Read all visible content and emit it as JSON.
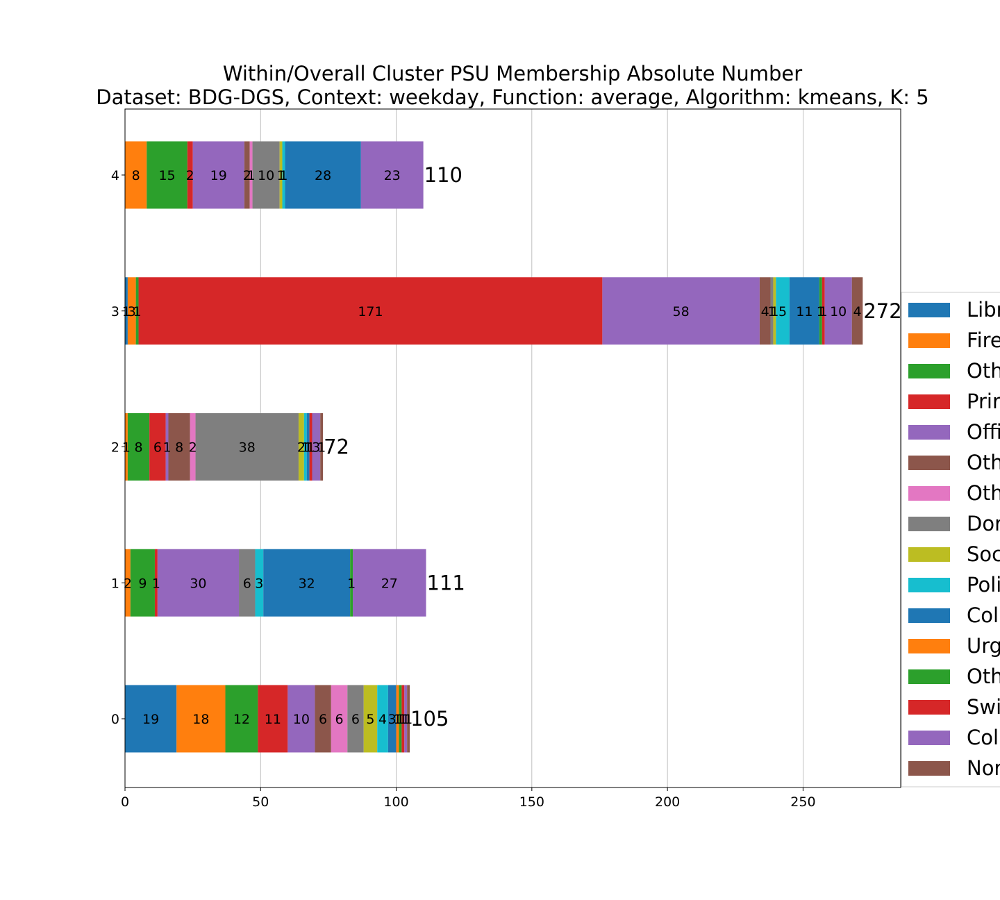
{
  "chart_data": {
    "type": "bar",
    "orientation": "horizontal",
    "stacked": true,
    "title": "Within/Overall Cluster PSU Membership Absolute Number",
    "subtitle": "Dataset: BDG-DGS, Context: weekday, Function: average, Algorithm: kmeans, K: 5",
    "xlabel": "",
    "ylabel": "",
    "xlim": [
      0,
      286
    ],
    "x_ticks": [
      "0",
      "50",
      "100",
      "150",
      "200",
      "250"
    ],
    "grid": "vertical",
    "legend_position": "right (cropped)",
    "categories": [
      "0",
      "1",
      "2",
      "3",
      "4"
    ],
    "totals": [
      "105",
      "111",
      "72",
      "272",
      "110"
    ],
    "series": [
      {
        "name": "Libr",
        "color": "#1f77b4",
        "values": [
          19,
          0,
          0,
          1,
          0
        ],
        "labels": [
          "19",
          "",
          "",
          "1",
          ""
        ]
      },
      {
        "name": "Fire",
        "color": "#ff7f0e",
        "values": [
          18,
          2,
          1,
          3,
          8
        ],
        "labels": [
          "18",
          "2",
          "1",
          "3",
          "8"
        ]
      },
      {
        "name": "Oth",
        "color": "#2ca02c",
        "values": [
          12,
          9,
          8,
          1,
          15
        ],
        "labels": [
          "12",
          "9",
          "8",
          "1",
          "15"
        ]
      },
      {
        "name": "Prir",
        "color": "#d62728",
        "values": [
          11,
          1,
          6,
          171,
          2
        ],
        "labels": [
          "11",
          "1",
          "6",
          "171",
          "2"
        ]
      },
      {
        "name": "Offi",
        "color": "#9467bd",
        "values": [
          10,
          30,
          1,
          58,
          19
        ],
        "labels": [
          "10",
          "30",
          "1",
          "58",
          "19"
        ]
      },
      {
        "name": "Oth",
        "color": "#8c564b",
        "values": [
          6,
          0,
          8,
          4,
          2
        ],
        "labels": [
          "6",
          "",
          "8",
          "4",
          "2"
        ]
      },
      {
        "name": "Oth",
        "color": "#e377c2",
        "values": [
          6,
          0,
          2,
          0,
          1
        ],
        "labels": [
          "6",
          "",
          "2",
          "",
          "1"
        ]
      },
      {
        "name": "Dor",
        "color": "#7f7f7f",
        "values": [
          6,
          6,
          38,
          1,
          10
        ],
        "labels": [
          "6",
          "6",
          "38",
          "1",
          "10"
        ]
      },
      {
        "name": "Soc",
        "color": "#bcbd22",
        "values": [
          5,
          0,
          2,
          1,
          1
        ],
        "labels": [
          "5",
          "",
          "2",
          "1",
          "1"
        ]
      },
      {
        "name": "Poli",
        "color": "#17becf",
        "values": [
          4,
          3,
          1,
          5,
          1
        ],
        "labels": [
          "4",
          "3",
          "1",
          "5",
          "1"
        ]
      },
      {
        "name": "Col",
        "color": "#1f77b4",
        "values": [
          3,
          32,
          1,
          11,
          28
        ],
        "labels": [
          "3",
          "32",
          "1",
          "11",
          "28"
        ]
      },
      {
        "name": "Urg",
        "color": "#ff7f0e",
        "values": [
          1,
          0,
          0,
          0,
          0
        ],
        "labels": [
          "1",
          "",
          "",
          "",
          ""
        ]
      },
      {
        "name": "Oth",
        "color": "#2ca02c",
        "values": [
          1,
          1,
          0,
          1,
          0
        ],
        "labels": [
          "1",
          "1",
          "",
          "1",
          ""
        ]
      },
      {
        "name": "Swi",
        "color": "#d62728",
        "values": [
          1,
          0,
          1,
          1,
          0
        ],
        "labels": [
          "1",
          "",
          "1",
          "1",
          ""
        ]
      },
      {
        "name": "Col",
        "color": "#9467bd",
        "values": [
          1,
          27,
          3,
          10,
          23
        ],
        "labels": [
          "1",
          "27",
          "3",
          "10",
          "23"
        ]
      },
      {
        "name": "Nor",
        "color": "#8c564b",
        "values": [
          1,
          0,
          1,
          4,
          0
        ],
        "labels": [
          "1",
          "",
          "1",
          "4",
          ""
        ]
      }
    ]
  }
}
